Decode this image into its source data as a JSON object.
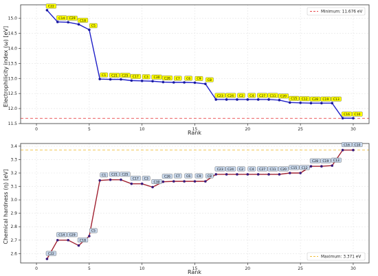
{
  "chart_data": [
    {
      "type": "line",
      "xlabel": "Rank",
      "ylabel": "Electrophilicity index (ω) [eV]",
      "xlim": [
        -1.5,
        31.5
      ],
      "ylim": [
        11.5,
        15.45
      ],
      "xticks": [
        0,
        5,
        10,
        15,
        20,
        25,
        30
      ],
      "yticks": [
        11.5,
        12.0,
        12.5,
        13.0,
        13.5,
        14.0,
        14.5,
        15.0
      ],
      "ytick_decimals": 1,
      "grid": true,
      "legend_position": "top-right",
      "line_color": "#1f1fc8",
      "marker_color": "#1a1aa0",
      "label_bg": "#ffff00",
      "label_text_color": "#000000",
      "label_dy": -6,
      "series": [
        {
          "x": [
            1,
            2,
            3,
            4,
            5,
            6,
            7,
            8,
            9,
            10,
            11,
            12,
            13,
            14,
            15,
            16,
            17,
            18,
            19,
            20,
            21,
            22,
            23,
            24,
            25,
            26,
            27,
            28,
            29,
            30
          ],
          "values": [
            15.27,
            14.88,
            14.87,
            14.8,
            14.62,
            12.98,
            12.97,
            12.97,
            12.93,
            12.92,
            12.91,
            12.88,
            12.87,
            12.87,
            12.86,
            12.82,
            12.3,
            12.3,
            12.3,
            12.3,
            12.3,
            12.3,
            12.28,
            12.2,
            12.19,
            12.18,
            12.18,
            12.18,
            11.68,
            11.68
          ],
          "labels": [
            "C22",
            "C14",
            "C29",
            "C18",
            "C5",
            "C1",
            "C21",
            "C25",
            "C17",
            "C3",
            "C30",
            "C26",
            "C7",
            "C6",
            "C9",
            "C8",
            "C23",
            "C24",
            "C2",
            "C4",
            "C27",
            "C11",
            "C20",
            "C15",
            "C12",
            "C28",
            "C19",
            "C13",
            "C16",
            "C10"
          ]
        }
      ],
      "reference_line": {
        "value": 11.676,
        "color": "#e8474a",
        "label": "Minimum: 11.676 eV"
      }
    },
    {
      "type": "line",
      "xlabel": "Rank",
      "ylabel": "Chemical hardness (η) [eV]",
      "xlim": [
        -1.5,
        31.5
      ],
      "ylim": [
        2.53,
        3.42
      ],
      "xticks": [
        0,
        5,
        10,
        15,
        20,
        25,
        30
      ],
      "yticks": [
        2.6,
        2.7,
        2.8,
        2.9,
        3.0,
        3.1,
        3.2,
        3.3,
        3.4
      ],
      "ytick_decimals": 1,
      "grid": true,
      "legend_position": "bottom-right",
      "line_color": "#a02030",
      "marker_color": "#3a1a7a",
      "label_bg": "#c8d8ec",
      "label_text_color": "#000000",
      "label_dy": -8,
      "series": [
        {
          "x": [
            1,
            2,
            3,
            4,
            5,
            6,
            7,
            8,
            9,
            10,
            11,
            12,
            13,
            14,
            15,
            16,
            17,
            18,
            19,
            20,
            21,
            22,
            23,
            24,
            25,
            26,
            27,
            28,
            29,
            30
          ],
          "values": [
            2.56,
            2.7,
            2.7,
            2.66,
            2.73,
            3.145,
            3.15,
            3.15,
            3.12,
            3.12,
            3.095,
            3.135,
            3.138,
            3.138,
            3.138,
            3.138,
            3.19,
            3.19,
            3.19,
            3.19,
            3.19,
            3.19,
            3.19,
            3.2,
            3.2,
            3.25,
            3.25,
            3.255,
            3.371,
            3.371
          ],
          "labels": [
            "C22",
            "C14",
            "C29",
            "C18",
            "C5",
            "C1",
            "C21",
            "C25",
            "C17",
            "C3",
            "C30",
            "C26",
            "C7",
            "C6",
            "C9",
            "C8",
            "C23",
            "C24",
            "C2",
            "C4",
            "C27",
            "C11",
            "C20",
            "C15",
            "C12",
            "C28",
            "C19",
            "C13",
            "C16",
            "C10"
          ]
        }
      ],
      "reference_line": {
        "value": 3.371,
        "color": "#f0c040",
        "label": "Maximum: 3.371 eV"
      }
    }
  ]
}
